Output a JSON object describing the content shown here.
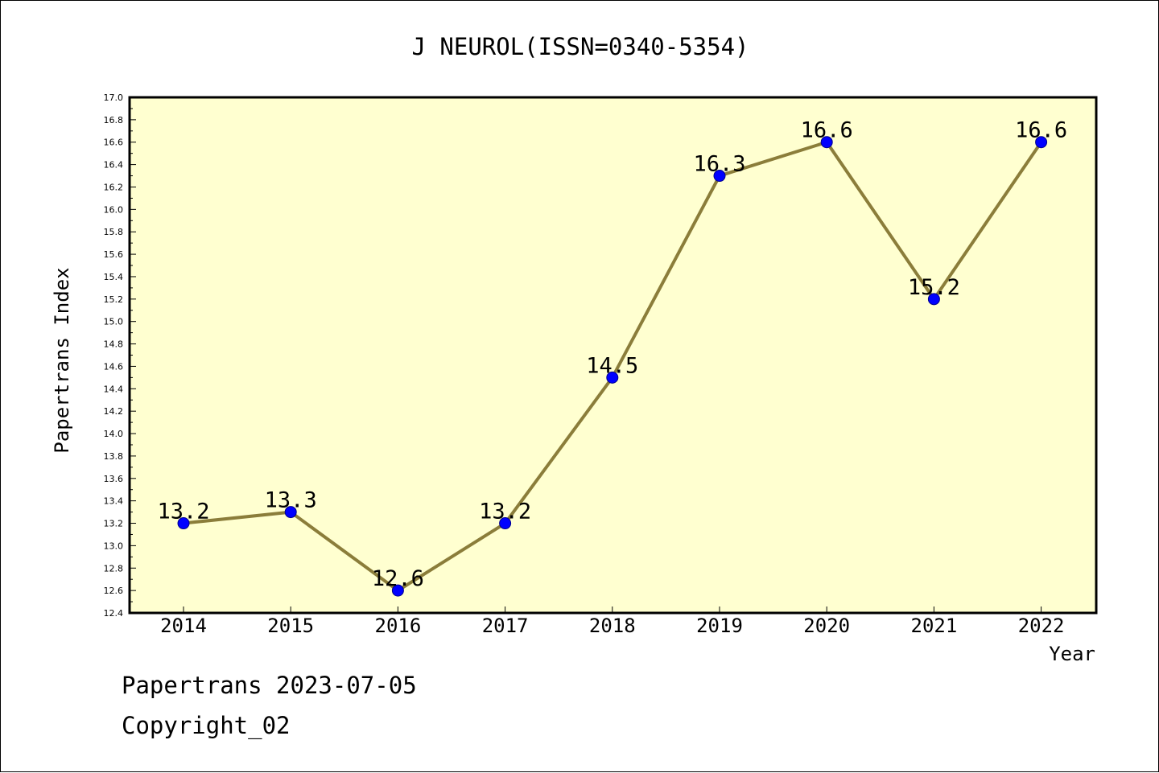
{
  "chart_data": {
    "type": "line",
    "title": "J NEUROL(ISSN=0340-5354)",
    "xlabel": "Year",
    "ylabel": "Papertrans Index",
    "categories": [
      "2014",
      "2015",
      "2016",
      "2017",
      "2018",
      "2019",
      "2020",
      "2021",
      "2022"
    ],
    "series": [
      {
        "values": [
          13.2,
          13.3,
          12.6,
          13.2,
          14.5,
          16.3,
          16.6,
          15.2,
          16.6
        ],
        "labels": [
          "13.2",
          "13.3",
          "12.6",
          "13.2",
          "14.5",
          "16.3",
          "16.6",
          "15.2",
          "16.6"
        ]
      }
    ],
    "ylim": [
      12.4,
      17.0
    ],
    "yticks": [
      "12.4",
      "12.6",
      "12.8",
      "13.0",
      "13.2",
      "13.4",
      "13.6",
      "13.8",
      "14.0",
      "14.2",
      "14.4",
      "14.6",
      "14.8",
      "15.0",
      "15.2",
      "15.4",
      "15.6",
      "15.8",
      "16.0",
      "16.2",
      "16.4",
      "16.6",
      "16.8",
      "17.0"
    ],
    "grid": false,
    "colors": {
      "plot_background": "#ffffd0",
      "line": "#8b7d3a",
      "marker": "#0000ff",
      "marker_edge": "#00008b",
      "frame": "#000000"
    }
  },
  "footer": {
    "date_line": "Papertrans 2023-07-05",
    "copyright": "Copyright_02"
  }
}
